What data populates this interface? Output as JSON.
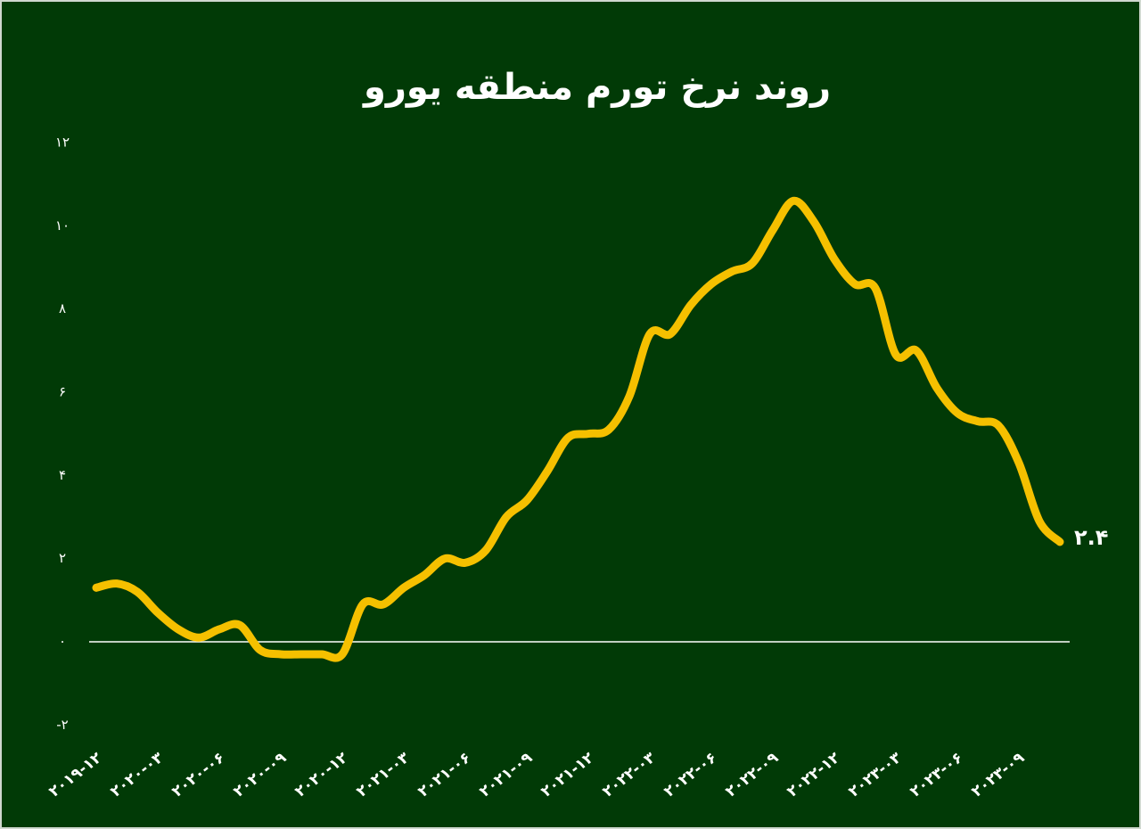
{
  "chart_data": {
    "type": "line",
    "title": "روند نرخ تورم منطقه یورو",
    "categories": [
      "۲۰۱۹-۱۲",
      null,
      null,
      "۲۰۲۰-۰۳",
      null,
      null,
      "۲۰۲۰-۰۶",
      null,
      null,
      "۲۰۲۰-۰۹",
      null,
      null,
      "۲۰۲۰-۱۲",
      null,
      null,
      "۲۰۲۱-۰۳",
      null,
      null,
      "۲۰۲۱-۰۶",
      null,
      null,
      "۲۰۲۱-۰۹",
      null,
      null,
      "۲۰۲۱-۱۲",
      null,
      null,
      "۲۰۲۲-۰۳",
      null,
      null,
      "۲۰۲۲-۰۶",
      null,
      null,
      "۲۰۲۲-۰۹",
      null,
      null,
      "۲۰۲۲-۱۲",
      null,
      null,
      "۲۰۲۳-۰۳",
      null,
      null,
      "۲۰۲۳-۰۶",
      null,
      null,
      "۲۰۲۳-۰۹",
      null,
      null
    ],
    "series": [
      {
        "color": "#f5c000",
        "values": [
          1.3,
          1.4,
          1.2,
          0.7,
          0.3,
          0.1,
          0.3,
          0.4,
          -0.2,
          -0.3,
          -0.3,
          -0.3,
          -0.3,
          0.9,
          0.9,
          1.3,
          1.6,
          2.0,
          1.9,
          2.2,
          3.0,
          3.4,
          4.1,
          4.9,
          5.0,
          5.1,
          5.9,
          7.4,
          7.4,
          8.1,
          8.6,
          8.9,
          9.1,
          9.9,
          10.6,
          10.1,
          9.2,
          8.6,
          8.5,
          6.9,
          7.0,
          6.1,
          5.5,
          5.3,
          5.2,
          4.3,
          2.9,
          2.4
        ],
        "value_labels": [
          null,
          null,
          null,
          null,
          null,
          null,
          null,
          null,
          null,
          null,
          null,
          null,
          null,
          null,
          null,
          null,
          null,
          null,
          null,
          null,
          null,
          null,
          null,
          null,
          null,
          null,
          null,
          null,
          null,
          null,
          null,
          null,
          null,
          null,
          null,
          null,
          null,
          null,
          null,
          null,
          null,
          null,
          null,
          null,
          null,
          null,
          null,
          "۲.۴"
        ]
      }
    ],
    "ylim": [
      -2,
      12
    ],
    "yticks": [
      {
        "value": -2,
        "label": "-۲"
      },
      {
        "value": 0,
        "label": "۰"
      },
      {
        "value": 2,
        "label": "۲"
      },
      {
        "value": 4,
        "label": "۴"
      },
      {
        "value": 6,
        "label": "۶"
      },
      {
        "value": 8,
        "label": "۸"
      },
      {
        "value": 10,
        "label": "۱۰"
      },
      {
        "value": 12,
        "label": "۱۲"
      }
    ],
    "grid": false,
    "zero_line": true
  }
}
